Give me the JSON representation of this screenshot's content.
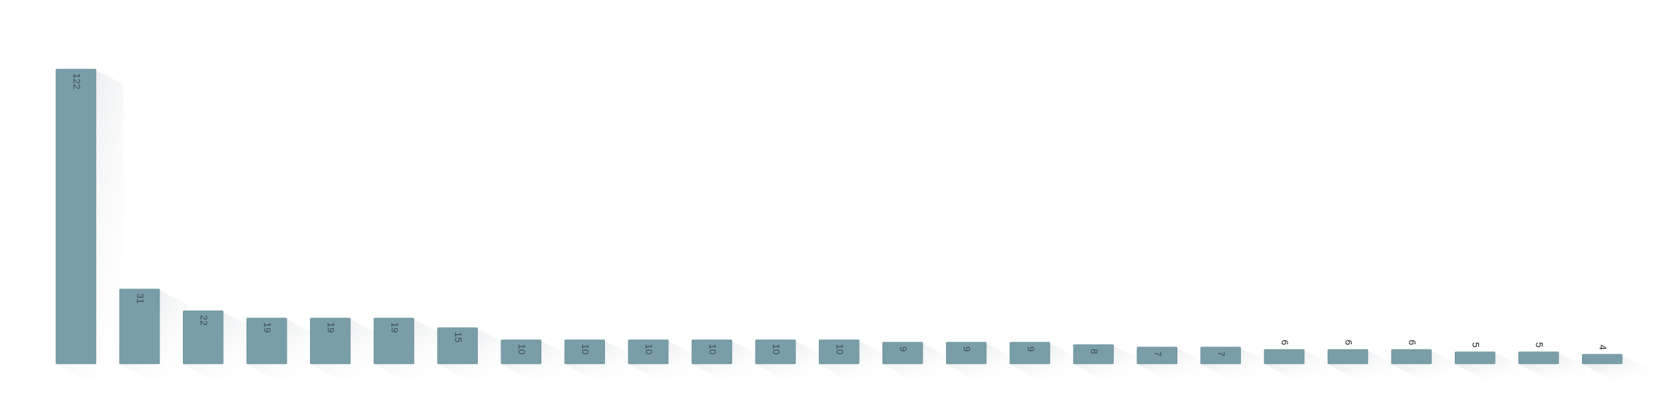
{
  "chart_data": {
    "type": "bar",
    "title": "",
    "xlabel": "",
    "ylabel": "",
    "ylim": [
      0,
      122
    ],
    "grid": false,
    "legend": "none",
    "categories": [],
    "values": [
      122,
      31,
      22,
      19,
      19,
      19,
      15,
      10,
      10,
      10,
      10,
      10,
      10,
      9,
      9,
      9,
      8,
      7,
      7,
      6,
      6,
      6,
      5,
      5,
      4
    ],
    "labels": [
      "122",
      "31",
      "22",
      "19",
      "19",
      "19",
      "15",
      "10",
      "10",
      "10",
      "10",
      "10",
      "10",
      "9",
      "9",
      "9",
      "8",
      "7",
      "7",
      "6",
      "6",
      "6",
      "5",
      "5",
      "4"
    ],
    "colors": {
      "bar": "#7a9ea8",
      "bar_edge": "#5f8791",
      "shadow": "#c9ced3",
      "label_inside": "#3b4a52",
      "label_outside": "#222222"
    }
  }
}
